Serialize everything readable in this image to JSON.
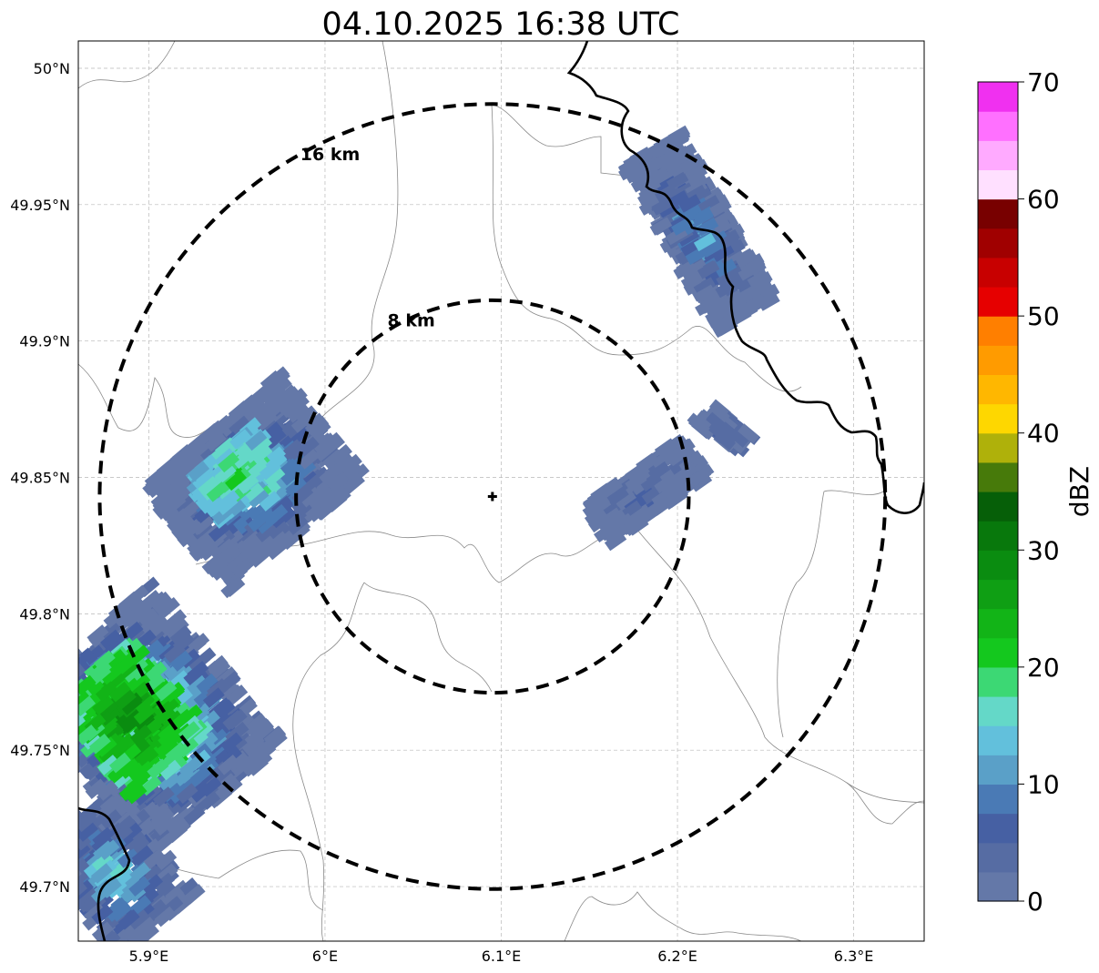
{
  "map": {
    "title": "04.10.2025 16:38 UTC",
    "lon_ticks": [
      {
        "value": 5.9,
        "label": "5.9°E"
      },
      {
        "value": 6.0,
        "label": "6°E"
      },
      {
        "value": 6.1,
        "label": "6.1°E"
      },
      {
        "value": 6.2,
        "label": "6.2°E"
      },
      {
        "value": 6.3,
        "label": "6.3°E"
      }
    ],
    "lat_ticks": [
      {
        "value": 50.0,
        "label": "50°N"
      },
      {
        "value": 49.95,
        "label": "49.95°N"
      },
      {
        "value": 49.9,
        "label": "49.9°N"
      },
      {
        "value": 49.85,
        "label": "49.85°N"
      },
      {
        "value": 49.8,
        "label": "49.8°N"
      },
      {
        "value": 49.75,
        "label": "49.75°N"
      },
      {
        "value": 49.7,
        "label": "49.7°N"
      }
    ],
    "extent": {
      "lon_min": 5.86,
      "lon_max": 6.34,
      "lat_min": 49.68,
      "lat_max": 50.01
    },
    "radar_site": {
      "lon": 6.095,
      "lat": 49.843
    },
    "range_rings": [
      {
        "radius_km": 8,
        "label": "8 km"
      },
      {
        "radius_km": 16,
        "label": "16 km"
      }
    ],
    "gridlines": true
  },
  "colorbar": {
    "label": "dBZ",
    "min": 0,
    "max": 70,
    "tick_labels": [
      "0",
      "10",
      "20",
      "30",
      "40",
      "50",
      "60",
      "70"
    ],
    "colors": [
      "#6478a8",
      "#566ca3",
      "#4660a3",
      "#4a7ab5",
      "#5aa0c8",
      "#62c0dc",
      "#64d8c8",
      "#3cd874",
      "#14c81e",
      "#12b417",
      "#0f9f14",
      "#0a8c10",
      "#08780c",
      "#065f08",
      "#477a0a",
      "#afb10a",
      "#fed700",
      "#ffb700",
      "#ff9b00",
      "#ff7f00",
      "#e60000",
      "#c80000",
      "#a00000",
      "#780000",
      "#ffe0ff",
      "#ffaaff",
      "#ff70ff",
      "#f030f0"
    ]
  }
}
